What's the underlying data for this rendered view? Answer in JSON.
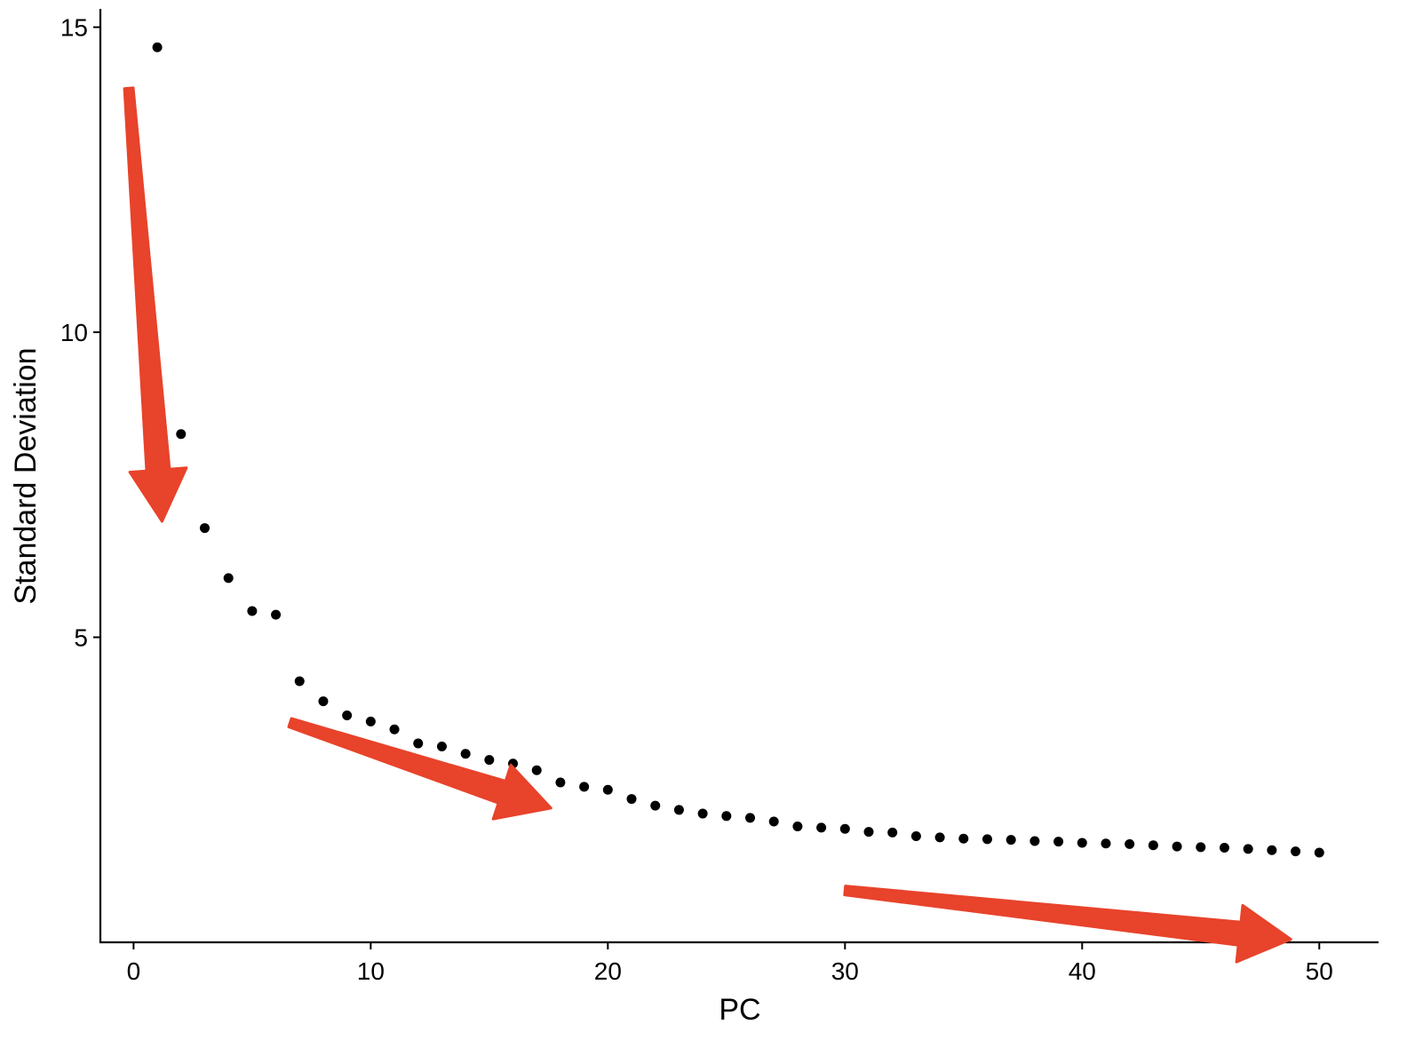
{
  "chart_data": {
    "type": "scatter",
    "title": "",
    "xlabel": "PC",
    "ylabel": "Standard Deviation",
    "xlim": [
      -1.4,
      52.5
    ],
    "ylim": [
      0,
      15.3
    ],
    "xticks": [
      0,
      10,
      20,
      30,
      40,
      50
    ],
    "yticks": [
      5,
      10,
      15
    ],
    "grid": false,
    "legend": "none",
    "point_color": "#000000",
    "annotation_color": "#E8432B",
    "series": [
      {
        "x": [
          1,
          2,
          3,
          4,
          5,
          6,
          7,
          8,
          9,
          10,
          11,
          12,
          13,
          14,
          15,
          16,
          17,
          18,
          19,
          20,
          21,
          22,
          23,
          24,
          25,
          26,
          27,
          28,
          29,
          30,
          31,
          32,
          33,
          34,
          35,
          36,
          37,
          38,
          39,
          40,
          41,
          42,
          43,
          44,
          45,
          46,
          47,
          48,
          49,
          50
        ],
        "values": [
          14.67,
          8.33,
          6.79,
          5.97,
          5.43,
          5.37,
          4.28,
          3.95,
          3.72,
          3.62,
          3.49,
          3.26,
          3.21,
          3.09,
          2.99,
          2.93,
          2.82,
          2.62,
          2.55,
          2.5,
          2.35,
          2.24,
          2.17,
          2.11,
          2.07,
          2.04,
          1.98,
          1.9,
          1.88,
          1.86,
          1.81,
          1.8,
          1.74,
          1.72,
          1.7,
          1.69,
          1.68,
          1.66,
          1.65,
          1.63,
          1.62,
          1.61,
          1.59,
          1.57,
          1.56,
          1.55,
          1.53,
          1.51,
          1.49,
          1.47
        ]
      }
    ],
    "annotations": [
      {
        "type": "arrow",
        "from": [
          -0.2,
          14.0
        ],
        "to": [
          1.2,
          6.9
        ]
      },
      {
        "type": "arrow",
        "from": [
          6.6,
          3.6
        ],
        "to": [
          17.6,
          2.2
        ]
      },
      {
        "type": "arrow",
        "from": [
          30.0,
          0.85
        ],
        "to": [
          48.8,
          0.05
        ]
      }
    ]
  }
}
